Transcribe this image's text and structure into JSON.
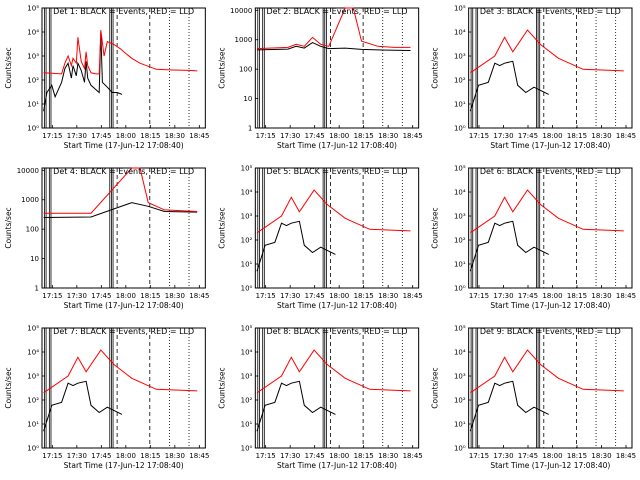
{
  "figure": {
    "xaxis_title": "Start Time (17-Jun-12 17:08:40)",
    "ylabel": "Counts/sec",
    "x_ticks": [
      "17:15",
      "17:30",
      "17:45",
      "18:00",
      "18:15",
      "18:30",
      "18:45"
    ],
    "x_tick_minutes": [
      6.33,
      21.33,
      36.33,
      51.33,
      66.33,
      81.33,
      96.33
    ],
    "x_range_minutes": [
      0,
      100
    ],
    "series_colors": {
      "events": "#000000",
      "lld": "#ff0000"
    },
    "y_scale": "log"
  },
  "chart_data": [
    {
      "type": "line",
      "title": "Det 1: BLACK = Events, RED = LLD",
      "ylim": [
        1,
        100000
      ],
      "y_ticks": [
        "10⁰",
        "10¹",
        "10²",
        "10³",
        "10⁴",
        "10⁵"
      ],
      "y_tick_values": [
        1,
        10,
        100,
        1000,
        10000,
        100000
      ],
      "series": [
        {
          "name": "Events",
          "values": [
            [
              1,
              5
            ],
            [
              3,
              30
            ],
            [
              6,
              60
            ],
            [
              8,
              20
            ],
            [
              12,
              80
            ],
            [
              14,
              300
            ],
            [
              16,
              500
            ],
            [
              18,
              120
            ],
            [
              19,
              400
            ],
            [
              21,
              150
            ],
            [
              22,
              500
            ],
            [
              24,
              250
            ],
            [
              26,
              80
            ],
            [
              27,
              600
            ],
            [
              28,
              120
            ],
            [
              30,
              60
            ],
            [
              33,
              40
            ],
            [
              35,
              30
            ],
            [
              36,
              10000
            ],
            [
              37,
              80
            ],
            [
              40,
              50
            ],
            [
              43,
              30
            ],
            [
              46,
              30
            ],
            [
              49,
              25
            ]
          ]
        },
        {
          "name": "LLD",
          "values": [
            [
              1,
              200
            ],
            [
              12,
              180
            ],
            [
              14,
              500
            ],
            [
              16,
              1000
            ],
            [
              18,
              400
            ],
            [
              19,
              800
            ],
            [
              21,
              500
            ],
            [
              22,
              6000
            ],
            [
              24,
              600
            ],
            [
              26,
              300
            ],
            [
              27,
              1500
            ],
            [
              28,
              400
            ],
            [
              30,
              200
            ],
            [
              33,
              180
            ],
            [
              35,
              180
            ],
            [
              36,
              12000
            ],
            [
              38,
              1000
            ],
            [
              40,
              4000
            ],
            [
              44,
              3000
            ],
            [
              48,
              2000
            ],
            [
              50,
              1500
            ],
            [
              55,
              800
            ],
            [
              60,
              500
            ],
            [
              70,
              280
            ],
            [
              80,
              260
            ],
            [
              90,
              250
            ],
            [
              95,
              240
            ]
          ]
        }
      ]
    },
    {
      "type": "line",
      "title": "Det 2: BLACK = Events, RED = LLD",
      "ylim": [
        1,
        12000
      ],
      "y_ticks": [
        "1",
        "10",
        "100",
        "1000",
        "10000"
      ],
      "y_tick_values": [
        1,
        10,
        100,
        1000,
        10000
      ],
      "series": [
        {
          "name": "Events",
          "values": [
            [
              1,
              450
            ],
            [
              20,
              480
            ],
            [
              25,
              600
            ],
            [
              30,
              520
            ],
            [
              35,
              800
            ],
            [
              40,
              600
            ],
            [
              45,
              500
            ],
            [
              55,
              520
            ],
            [
              65,
              470
            ],
            [
              75,
              450
            ],
            [
              85,
              440
            ],
            [
              95,
              430
            ]
          ]
        },
        {
          "name": "LLD",
          "values": [
            [
              1,
              500
            ],
            [
              20,
              550
            ],
            [
              25,
              700
            ],
            [
              30,
              600
            ],
            [
              35,
              1200
            ],
            [
              40,
              700
            ],
            [
              45,
              600
            ],
            [
              55,
              12000
            ],
            [
              60,
              12000
            ],
            [
              65,
              900
            ],
            [
              75,
              600
            ],
            [
              85,
              550
            ],
            [
              95,
              550
            ]
          ]
        }
      ]
    },
    {
      "type": "line",
      "title": "Det 3: BLACK = Events, RED = LLD",
      "ylim": [
        1,
        100000
      ],
      "y_ticks": [
        "10⁰",
        "10¹",
        "10²",
        "10³",
        "10⁴",
        "10⁵"
      ],
      "y_tick_values": [
        1,
        10,
        100,
        1000,
        10000,
        100000
      ],
      "series": [
        {
          "name": "Events",
          "values": [
            [
              1,
              5
            ],
            [
              6,
              60
            ],
            [
              12,
              80
            ],
            [
              16,
              500
            ],
            [
              19,
              400
            ],
            [
              22,
              500
            ],
            [
              27,
              600
            ],
            [
              30,
              60
            ],
            [
              35,
              30
            ],
            [
              40,
              50
            ],
            [
              49,
              25
            ]
          ]
        },
        {
          "name": "LLD",
          "values": [
            [
              1,
              200
            ],
            [
              16,
              1000
            ],
            [
              22,
              6000
            ],
            [
              27,
              1500
            ],
            [
              36,
              12000
            ],
            [
              44,
              3000
            ],
            [
              55,
              800
            ],
            [
              70,
              280
            ],
            [
              95,
              240
            ]
          ]
        }
      ]
    },
    {
      "type": "line",
      "title": "Det 4: BLACK = Events, RED = LLD",
      "ylim": [
        1,
        12000
      ],
      "y_ticks": [
        "1",
        "10",
        "100",
        "1000",
        "10000"
      ],
      "y_tick_values": [
        1,
        10,
        100,
        1000,
        10000
      ],
      "series": [
        {
          "name": "Events",
          "values": [
            [
              1,
              250
            ],
            [
              30,
              260
            ],
            [
              55,
              800
            ],
            [
              65,
              600
            ],
            [
              75,
              400
            ],
            [
              95,
              380
            ]
          ]
        },
        {
          "name": "LLD",
          "values": [
            [
              1,
              350
            ],
            [
              30,
              350
            ],
            [
              55,
              12000
            ],
            [
              60,
              12000
            ],
            [
              65,
              800
            ],
            [
              75,
              450
            ],
            [
              95,
              400
            ]
          ]
        }
      ]
    },
    {
      "type": "line",
      "title": "Det 5: BLACK = Events, RED = LLD",
      "ylim": [
        1,
        100000
      ],
      "y_ticks": [
        "10⁰",
        "10¹",
        "10²",
        "10³",
        "10⁴",
        "10⁵"
      ],
      "y_tick_values": [
        1,
        10,
        100,
        1000,
        10000,
        100000
      ],
      "series": [
        {
          "name": "Events",
          "values": [
            [
              1,
              5
            ],
            [
              6,
              60
            ],
            [
              12,
              80
            ],
            [
              16,
              500
            ],
            [
              19,
              400
            ],
            [
              22,
              500
            ],
            [
              27,
              600
            ],
            [
              30,
              60
            ],
            [
              35,
              30
            ],
            [
              40,
              50
            ],
            [
              49,
              25
            ]
          ]
        },
        {
          "name": "LLD",
          "values": [
            [
              1,
              200
            ],
            [
              16,
              1000
            ],
            [
              22,
              6000
            ],
            [
              27,
              1500
            ],
            [
              36,
              12000
            ],
            [
              44,
              3000
            ],
            [
              55,
              800
            ],
            [
              70,
              280
            ],
            [
              95,
              240
            ]
          ]
        }
      ]
    },
    {
      "type": "line",
      "title": "Det 6: BLACK = Events, RED = LLD",
      "ylim": [
        1,
        100000
      ],
      "y_ticks": [
        "10⁰",
        "10¹",
        "10²",
        "10³",
        "10⁴",
        "10⁵"
      ],
      "y_tick_values": [
        1,
        10,
        100,
        1000,
        10000,
        100000
      ],
      "series": [
        {
          "name": "Events",
          "values": [
            [
              1,
              5
            ],
            [
              6,
              60
            ],
            [
              12,
              80
            ],
            [
              16,
              500
            ],
            [
              19,
              400
            ],
            [
              22,
              500
            ],
            [
              27,
              600
            ],
            [
              30,
              60
            ],
            [
              35,
              30
            ],
            [
              40,
              50
            ],
            [
              49,
              25
            ]
          ]
        },
        {
          "name": "LLD",
          "values": [
            [
              1,
              200
            ],
            [
              16,
              1000
            ],
            [
              22,
              6000
            ],
            [
              27,
              1500
            ],
            [
              36,
              12000
            ],
            [
              44,
              3000
            ],
            [
              55,
              800
            ],
            [
              70,
              280
            ],
            [
              95,
              240
            ]
          ]
        }
      ]
    },
    {
      "type": "line",
      "title": "Det 7: BLACK = Events, RED = LLD",
      "ylim": [
        1,
        100000
      ],
      "y_ticks": [
        "10⁰",
        "10¹",
        "10²",
        "10³",
        "10⁴",
        "10⁵"
      ],
      "y_tick_values": [
        1,
        10,
        100,
        1000,
        10000,
        100000
      ],
      "series": [
        {
          "name": "Events",
          "values": [
            [
              1,
              5
            ],
            [
              6,
              60
            ],
            [
              12,
              80
            ],
            [
              16,
              500
            ],
            [
              19,
              400
            ],
            [
              22,
              500
            ],
            [
              27,
              600
            ],
            [
              30,
              60
            ],
            [
              35,
              30
            ],
            [
              40,
              50
            ],
            [
              49,
              25
            ]
          ]
        },
        {
          "name": "LLD",
          "values": [
            [
              1,
              200
            ],
            [
              16,
              1000
            ],
            [
              22,
              6000
            ],
            [
              27,
              1500
            ],
            [
              36,
              12000
            ],
            [
              44,
              3000
            ],
            [
              55,
              800
            ],
            [
              70,
              280
            ],
            [
              95,
              240
            ]
          ]
        }
      ]
    },
    {
      "type": "line",
      "title": "Det 8: BLACK = Events, RED = LLD",
      "ylim": [
        1,
        100000
      ],
      "y_ticks": [
        "10⁰",
        "10¹",
        "10²",
        "10³",
        "10⁴",
        "10⁵"
      ],
      "y_tick_values": [
        1,
        10,
        100,
        1000,
        10000,
        100000
      ],
      "series": [
        {
          "name": "Events",
          "values": [
            [
              1,
              5
            ],
            [
              6,
              60
            ],
            [
              12,
              80
            ],
            [
              16,
              500
            ],
            [
              19,
              400
            ],
            [
              22,
              500
            ],
            [
              27,
              600
            ],
            [
              30,
              60
            ],
            [
              35,
              30
            ],
            [
              40,
              50
            ],
            [
              49,
              25
            ]
          ]
        },
        {
          "name": "LLD",
          "values": [
            [
              1,
              200
            ],
            [
              16,
              1000
            ],
            [
              22,
              6000
            ],
            [
              27,
              1500
            ],
            [
              36,
              12000
            ],
            [
              44,
              3000
            ],
            [
              55,
              800
            ],
            [
              70,
              280
            ],
            [
              95,
              240
            ]
          ]
        }
      ]
    },
    {
      "type": "line",
      "title": "Det 9: BLACK = Events, RED = LLD",
      "ylim": [
        1,
        100000
      ],
      "y_ticks": [
        "10⁰",
        "10¹",
        "10²",
        "10³",
        "10⁴",
        "10⁵"
      ],
      "y_tick_values": [
        1,
        10,
        100,
        1000,
        10000,
        100000
      ],
      "series": [
        {
          "name": "Events",
          "values": [
            [
              1,
              5
            ],
            [
              6,
              60
            ],
            [
              12,
              80
            ],
            [
              16,
              500
            ],
            [
              19,
              400
            ],
            [
              22,
              500
            ],
            [
              27,
              600
            ],
            [
              30,
              60
            ],
            [
              35,
              30
            ],
            [
              40,
              50
            ],
            [
              49,
              25
            ]
          ]
        },
        {
          "name": "LLD",
          "values": [
            [
              1,
              200
            ],
            [
              16,
              1000
            ],
            [
              22,
              6000
            ],
            [
              27,
              1500
            ],
            [
              36,
              12000
            ],
            [
              44,
              3000
            ],
            [
              55,
              800
            ],
            [
              70,
              280
            ],
            [
              95,
              240
            ]
          ]
        }
      ]
    }
  ]
}
